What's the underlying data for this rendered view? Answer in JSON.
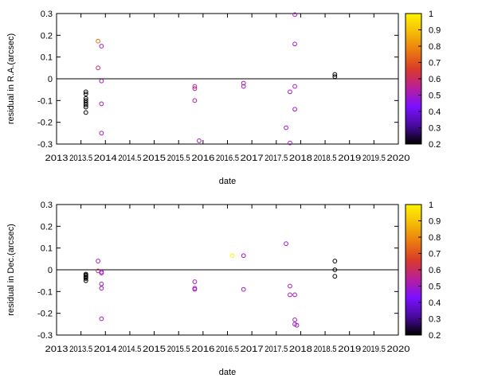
{
  "chart_data": [
    {
      "type": "scatter",
      "xlabel": "date",
      "ylabel": "residual in R.A.(arcsec)",
      "xlim": [
        2013,
        2020
      ],
      "ylim": [
        -0.3,
        0.3
      ],
      "x_ticks": [
        "2013",
        "2013.5",
        "2014",
        "2014.5",
        "2015",
        "2015.5",
        "2016",
        "2016.5",
        "2017",
        "2017.5",
        "2018",
        "2018.5",
        "2019",
        "2019.5",
        "2020"
      ],
      "y_ticks": [
        "0.3",
        "0.2",
        "0.1",
        "0",
        "-0.1",
        "-0.2",
        "-0.3"
      ],
      "zero_line": true,
      "colorbar": {
        "range": [
          0.2,
          1
        ],
        "ticks": [
          "1",
          "0.9",
          "0.8",
          "0.7",
          "0.6",
          "0.5",
          "0.4",
          "0.3",
          "0.2"
        ],
        "stops": [
          "#000000",
          "#4a0aa0",
          "#7a10ff",
          "#b81f9a",
          "#d83a2a",
          "#ea7a10",
          "#f6bb08",
          "#fff200"
        ]
      },
      "points": [
        {
          "x": 2013.6,
          "y": -0.06,
          "c": 0.2
        },
        {
          "x": 2013.6,
          "y": -0.07,
          "c": 0.2
        },
        {
          "x": 2013.6,
          "y": -0.09,
          "c": 0.2
        },
        {
          "x": 2013.6,
          "y": -0.1,
          "c": 0.2
        },
        {
          "x": 2013.6,
          "y": -0.11,
          "c": 0.2
        },
        {
          "x": 2013.6,
          "y": -0.12,
          "c": 0.2
        },
        {
          "x": 2013.6,
          "y": -0.13,
          "c": 0.2
        },
        {
          "x": 2013.6,
          "y": -0.155,
          "c": 0.2
        },
        {
          "x": 2013.85,
          "y": 0.173,
          "c": 0.75
        },
        {
          "x": 2013.85,
          "y": 0.05,
          "c": 0.6
        },
        {
          "x": 2013.92,
          "y": 0.15,
          "c": 0.5
        },
        {
          "x": 2013.92,
          "y": -0.01,
          "c": 0.5
        },
        {
          "x": 2013.92,
          "y": -0.115,
          "c": 0.5
        },
        {
          "x": 2013.92,
          "y": -0.25,
          "c": 0.5
        },
        {
          "x": 2015.83,
          "y": -0.035,
          "c": 0.55
        },
        {
          "x": 2015.83,
          "y": -0.045,
          "c": 0.55
        },
        {
          "x": 2015.83,
          "y": -0.1,
          "c": 0.55
        },
        {
          "x": 2015.92,
          "y": -0.285,
          "c": 0.5
        },
        {
          "x": 2016.83,
          "y": -0.02,
          "c": 0.5
        },
        {
          "x": 2016.83,
          "y": -0.035,
          "c": 0.5
        },
        {
          "x": 2017.7,
          "y": -0.225,
          "c": 0.5
        },
        {
          "x": 2017.78,
          "y": -0.06,
          "c": 0.5
        },
        {
          "x": 2017.78,
          "y": -0.295,
          "c": 0.5
        },
        {
          "x": 2017.88,
          "y": 0.295,
          "c": 0.5
        },
        {
          "x": 2017.88,
          "y": 0.16,
          "c": 0.5
        },
        {
          "x": 2017.88,
          "y": -0.035,
          "c": 0.5
        },
        {
          "x": 2017.88,
          "y": -0.14,
          "c": 0.5
        },
        {
          "x": 2018.7,
          "y": 0.02,
          "c": 0.2
        },
        {
          "x": 2018.7,
          "y": 0.01,
          "c": 0.2
        }
      ]
    },
    {
      "type": "scatter",
      "xlabel": "date",
      "ylabel": "residual in Dec.(arcsec)",
      "xlim": [
        2013,
        2020
      ],
      "ylim": [
        -0.3,
        0.3
      ],
      "x_ticks": [
        "2013",
        "2013.5",
        "2014",
        "2014.5",
        "2015",
        "2015.5",
        "2016",
        "2016.5",
        "2017",
        "2017.5",
        "2018",
        "2018.5",
        "2019",
        "2019.5",
        "2020"
      ],
      "y_ticks": [
        "0.3",
        "0.2",
        "0.1",
        "0",
        "-0.1",
        "-0.2",
        "-0.3"
      ],
      "zero_line": true,
      "colorbar": {
        "range": [
          0.2,
          1
        ],
        "ticks": [
          "1",
          "0.9",
          "0.8",
          "0.7",
          "0.6",
          "0.5",
          "0.4",
          "0.3",
          "0.2"
        ],
        "stops": [
          "#000000",
          "#4a0aa0",
          "#7a10ff",
          "#b81f9a",
          "#d83a2a",
          "#ea7a10",
          "#f6bb08",
          "#fff200"
        ]
      },
      "points": [
        {
          "x": 2013.6,
          "y": -0.02,
          "c": 0.2
        },
        {
          "x": 2013.6,
          "y": -0.025,
          "c": 0.2
        },
        {
          "x": 2013.6,
          "y": -0.03,
          "c": 0.2
        },
        {
          "x": 2013.6,
          "y": -0.035,
          "c": 0.2
        },
        {
          "x": 2013.6,
          "y": -0.04,
          "c": 0.2
        },
        {
          "x": 2013.6,
          "y": -0.05,
          "c": 0.2
        },
        {
          "x": 2013.85,
          "y": 0.04,
          "c": 0.5
        },
        {
          "x": 2013.85,
          "y": -0.005,
          "c": 0.6
        },
        {
          "x": 2013.92,
          "y": -0.01,
          "c": 0.5
        },
        {
          "x": 2013.92,
          "y": -0.015,
          "c": 0.5
        },
        {
          "x": 2013.92,
          "y": -0.065,
          "c": 0.5
        },
        {
          "x": 2013.92,
          "y": -0.085,
          "c": 0.5
        },
        {
          "x": 2013.92,
          "y": -0.225,
          "c": 0.5
        },
        {
          "x": 2015.83,
          "y": -0.055,
          "c": 0.5
        },
        {
          "x": 2015.83,
          "y": -0.085,
          "c": 0.5
        },
        {
          "x": 2015.83,
          "y": -0.09,
          "c": 0.5
        },
        {
          "x": 2016.6,
          "y": 0.065,
          "c": 1.0
        },
        {
          "x": 2016.83,
          "y": 0.065,
          "c": 0.5
        },
        {
          "x": 2016.83,
          "y": -0.09,
          "c": 0.5
        },
        {
          "x": 2017.7,
          "y": 0.12,
          "c": 0.5
        },
        {
          "x": 2017.78,
          "y": -0.075,
          "c": 0.5
        },
        {
          "x": 2017.78,
          "y": -0.115,
          "c": 0.5
        },
        {
          "x": 2017.88,
          "y": -0.115,
          "c": 0.5
        },
        {
          "x": 2017.88,
          "y": -0.23,
          "c": 0.5
        },
        {
          "x": 2017.88,
          "y": -0.25,
          "c": 0.5
        },
        {
          "x": 2017.92,
          "y": -0.255,
          "c": 0.5
        },
        {
          "x": 2018.7,
          "y": 0.04,
          "c": 0.2
        },
        {
          "x": 2018.7,
          "y": 0.0,
          "c": 0.2
        },
        {
          "x": 2018.7,
          "y": -0.03,
          "c": 0.2
        }
      ]
    }
  ]
}
